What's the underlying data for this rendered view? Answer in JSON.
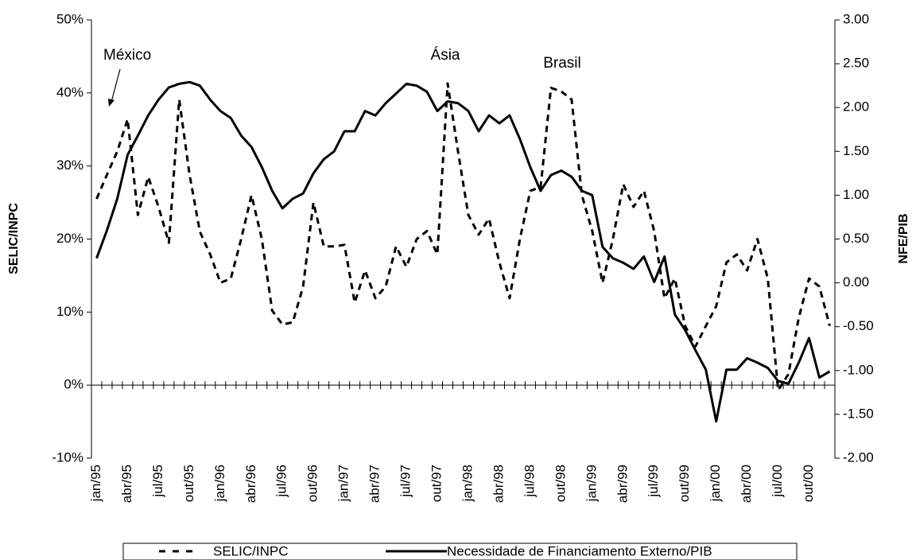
{
  "chart_data": {
    "type": "line",
    "y_label": "SELIC/INPC",
    "y2_label": "NFE/PIB",
    "annotations": [
      "México",
      "Ásia",
      "Brasil"
    ],
    "categories": [
      "jan/95",
      null,
      null,
      "abr/95",
      null,
      null,
      "jul/95",
      null,
      null,
      "out/95",
      null,
      null,
      "jan/96",
      null,
      null,
      "abr/96",
      null,
      null,
      "jul/96",
      null,
      null,
      "out/96",
      null,
      null,
      "jan/97",
      null,
      null,
      "abr/97",
      null,
      null,
      "jul/97",
      null,
      null,
      "out/97",
      null,
      null,
      "jan/98",
      null,
      null,
      "abr/98",
      null,
      null,
      "jul/98",
      null,
      null,
      "out/98",
      null,
      null,
      "jan/99",
      null,
      null,
      "abr/99",
      null,
      null,
      "jul/99",
      null,
      null,
      "out/99",
      null,
      null,
      "jan/00",
      null,
      null,
      "abr/00",
      null,
      null,
      "jul/00",
      null,
      null,
      "out/00",
      null,
      null
    ],
    "series": [
      {
        "name": "SELIC/INPC",
        "color": "#000000",
        "line_style": "dashed",
        "axis": "y",
        "values": [
          25.5,
          28.8,
          32,
          36.4,
          23.3,
          28.5,
          24.4,
          19.5,
          39.1,
          28.8,
          21,
          17.9,
          14,
          14.6,
          20,
          26,
          20,
          10.2,
          8.3,
          8.6,
          13.5,
          25,
          19,
          19,
          19.2,
          11.3,
          15.7,
          11.9,
          13.5,
          19,
          16.2,
          20,
          21.1,
          17.9,
          41.3,
          32,
          23.3,
          20.6,
          22.8,
          16.8,
          11.9,
          20,
          26.6,
          27.1,
          40.7,
          40.2,
          39.1,
          26,
          21.1,
          14,
          20,
          27.5,
          24.4,
          26.6,
          21.1,
          11.9,
          14.6,
          8.1,
          5.3,
          8.1,
          10.8,
          16.8,
          17.9,
          15.7,
          20,
          14.6,
          -0.7,
          1.5,
          9.2,
          14.6,
          13.5,
          8.1
        ]
      },
      {
        "name": "Necessidade de Financiamento Externo/PIB",
        "color": "#000000",
        "line_style": "solid",
        "axis": "y2",
        "values": [
          0.28,
          0.6,
          0.96,
          1.46,
          1.68,
          1.91,
          2.09,
          2.23,
          2.27,
          2.29,
          2.25,
          2.09,
          1.96,
          1.88,
          1.68,
          1.55,
          1.32,
          1.05,
          0.85,
          0.96,
          1.02,
          1.25,
          1.41,
          1.5,
          1.73,
          1.73,
          1.96,
          1.91,
          2.05,
          2.16,
          2.27,
          2.25,
          2.18,
          1.96,
          2.07,
          2.05,
          1.96,
          1.73,
          1.91,
          1.82,
          1.91,
          1.64,
          1.32,
          1.05,
          1.23,
          1.28,
          1.21,
          1.05,
          1.0,
          0.41,
          0.28,
          0.23,
          0.16,
          0.3,
          0.01,
          0.3,
          -0.36,
          -0.54,
          -0.77,
          -0.99,
          -1.58,
          -0.99,
          -0.99,
          -0.86,
          -0.91,
          -0.97,
          -1.12,
          -1.15,
          -0.91,
          -0.63,
          -1.08,
          -1.01
        ]
      }
    ],
    "ylim": [
      -10,
      50
    ],
    "yticks": [
      {
        "value": -10,
        "label": "-10%"
      },
      {
        "value": 0,
        "label": "0%"
      },
      {
        "value": 10,
        "label": "10%"
      },
      {
        "value": 20,
        "label": "20%"
      },
      {
        "value": 30,
        "label": "30%"
      },
      {
        "value": 40,
        "label": "40%"
      },
      {
        "value": 50,
        "label": "50%"
      }
    ],
    "y2lim": [
      -2,
      3
    ],
    "y2ticks": [
      {
        "value": -2,
        "label": "-2.00"
      },
      {
        "value": -1.5,
        "label": "-1.50"
      },
      {
        "value": -1,
        "label": "-1.00"
      },
      {
        "value": -0.5,
        "label": "-0.50"
      },
      {
        "value": 0,
        "label": "0.00"
      },
      {
        "value": 0.5,
        "label": "0.50"
      },
      {
        "value": 1,
        "label": "1.00"
      },
      {
        "value": 1.5,
        "label": "1.50"
      },
      {
        "value": 2,
        "label": "2.00"
      },
      {
        "value": 2.5,
        "label": "2.50"
      },
      {
        "value": 3,
        "label": "3.00"
      }
    ],
    "grid": false,
    "legend": "bottom"
  }
}
